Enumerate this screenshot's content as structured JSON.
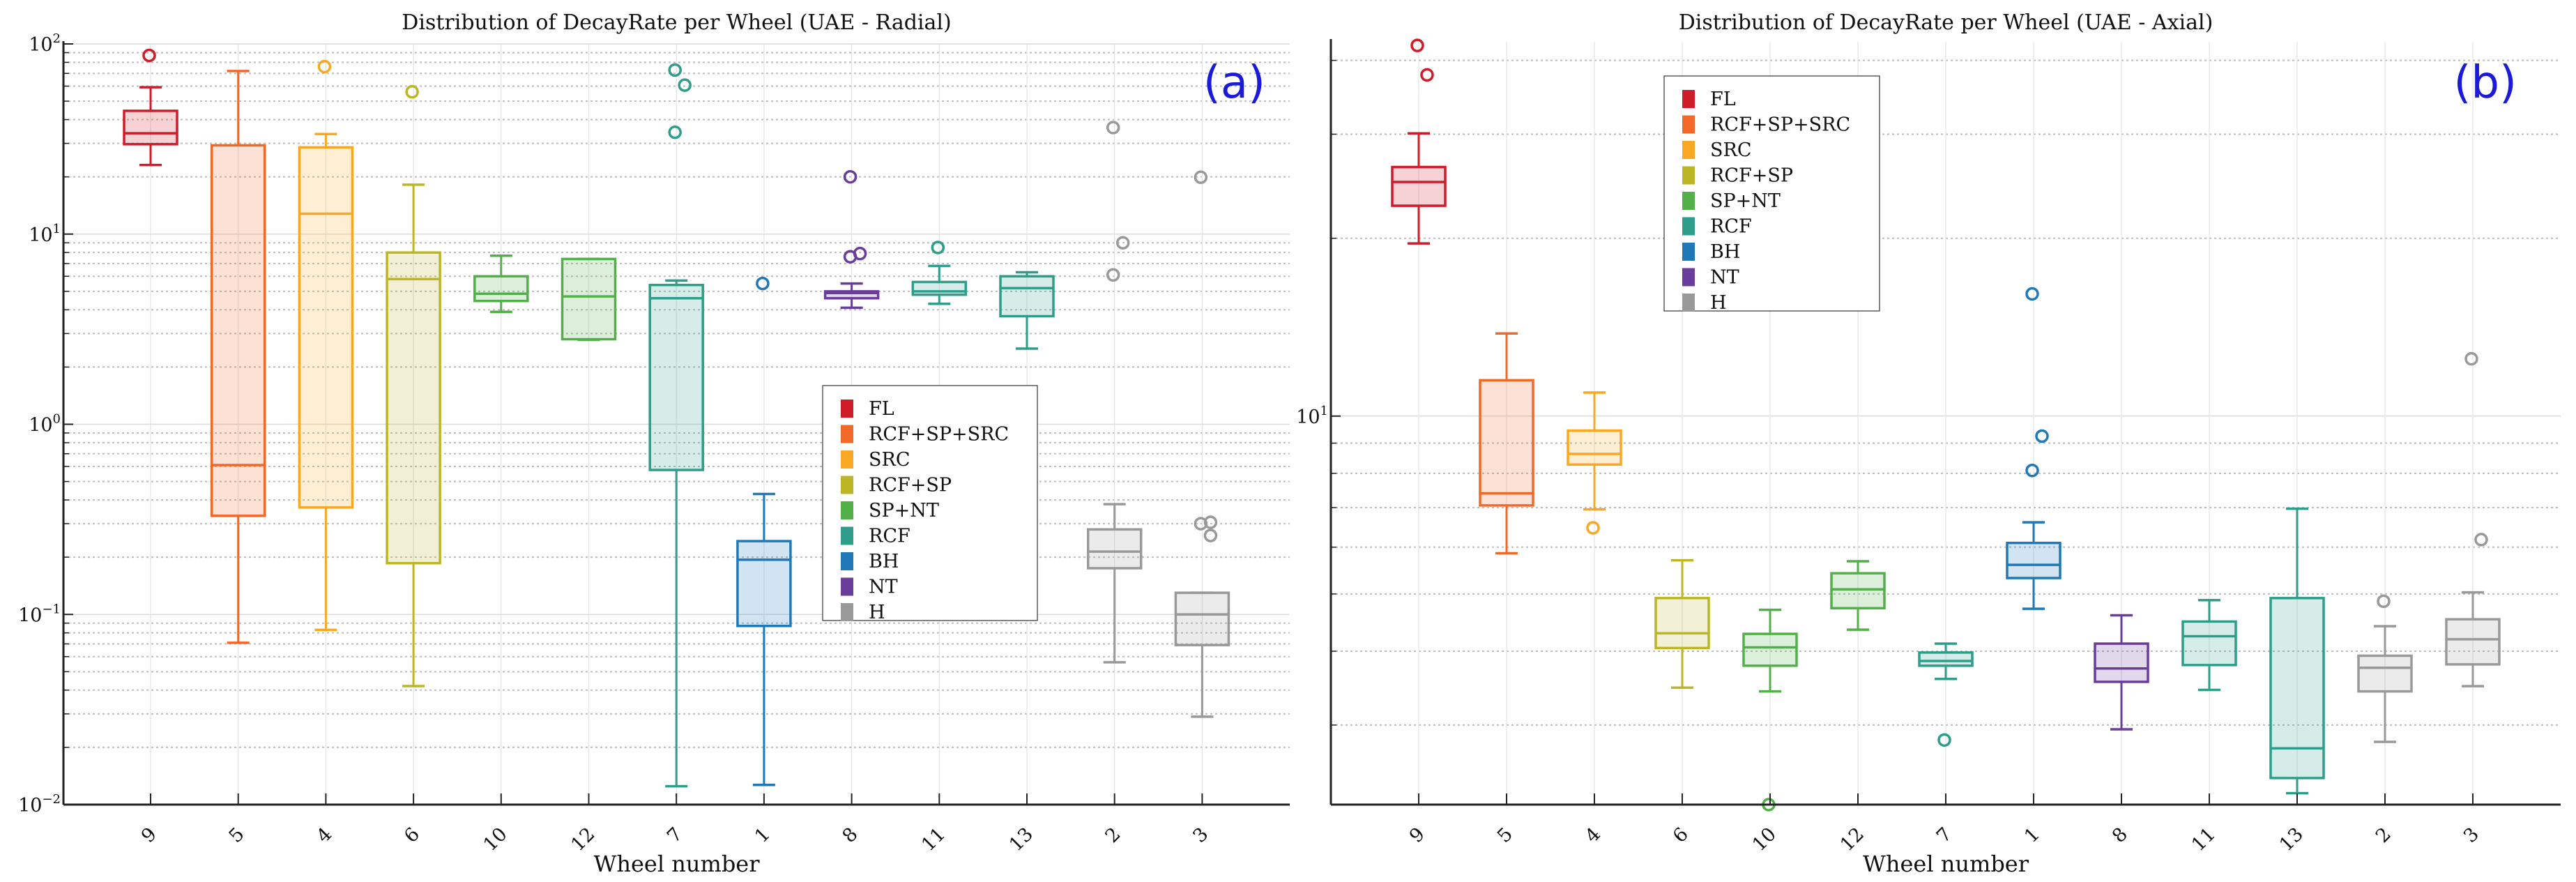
{
  "chart_data": [
    {
      "type": "box",
      "title": "Distribution of DecayRate per Wheel (UAE - Radial)",
      "panel_label": "(a)",
      "xlabel": "Wheel number",
      "ylabel": "",
      "yscale": "log",
      "ylim": [
        0.01,
        100
      ],
      "ytick_labels": [
        {
          "base": "10",
          "exp": "−2",
          "value": 0.01
        },
        {
          "base": "10",
          "exp": "−1",
          "value": 0.1
        },
        {
          "base": "10",
          "exp": "0",
          "value": 1
        },
        {
          "base": "10",
          "exp": "1",
          "value": 10
        },
        {
          "base": "10",
          "exp": "2",
          "value": 100
        }
      ],
      "grid": true,
      "legend_position": "center-right",
      "categories": [
        "9",
        "5",
        "4",
        "6",
        "10",
        "12",
        "7",
        "1",
        "8",
        "11",
        "13",
        "2",
        "3"
      ],
      "boxes": [
        {
          "wheel": "9",
          "group": "FL",
          "whislo": 23.1,
          "q1": 29.7,
          "med": 33.9,
          "q3": 44.5,
          "whishi": 59.2,
          "fliers": [
            87
          ]
        },
        {
          "wheel": "5",
          "group": "RCF+SP+SRC",
          "whislo": 0.071,
          "q1": 0.33,
          "med": 0.61,
          "q3": 29.3,
          "whishi": 72,
          "fliers": []
        },
        {
          "wheel": "4",
          "group": "SRC",
          "whislo": 0.083,
          "q1": 0.365,
          "med": 12.8,
          "q3": 28.6,
          "whishi": 33.6,
          "fliers": [
            76
          ]
        },
        {
          "wheel": "6",
          "group": "RCF+SP",
          "whislo": 0.042,
          "q1": 0.186,
          "med": 5.8,
          "q3": 8.0,
          "whishi": 18.2,
          "fliers": [
            56
          ]
        },
        {
          "wheel": "10",
          "group": "SP+NT",
          "whislo": 3.9,
          "q1": 4.45,
          "med": 4.86,
          "q3": 6.0,
          "whishi": 7.7,
          "fliers": []
        },
        {
          "wheel": "12",
          "group": "SP+NT",
          "whislo": 2.78,
          "q1": 2.8,
          "med": 4.7,
          "q3": 7.4,
          "whishi": 7.4,
          "fliers": []
        },
        {
          "wheel": "7",
          "group": "RCF",
          "whislo": 0.0125,
          "q1": 0.575,
          "med": 4.6,
          "q3": 5.4,
          "whishi": 5.7,
          "fliers": [
            72.9,
            60.7,
            34.3
          ]
        },
        {
          "wheel": "1",
          "group": "BH",
          "whislo": 0.0127,
          "q1": 0.087,
          "med": 0.194,
          "q3": 0.243,
          "whishi": 0.43,
          "fliers": [
            5.5
          ]
        },
        {
          "wheel": "8",
          "group": "NT",
          "whislo": 4.1,
          "q1": 4.6,
          "med": 4.9,
          "q3": 5.0,
          "whishi": 5.5,
          "fliers": [
            20.0,
            7.9,
            7.6
          ]
        },
        {
          "wheel": "11",
          "group": "RCF",
          "whislo": 4.3,
          "q1": 4.8,
          "med": 5.0,
          "q3": 5.6,
          "whishi": 6.8,
          "fliers": [
            8.5
          ]
        },
        {
          "wheel": "13",
          "group": "RCF",
          "whislo": 2.5,
          "q1": 3.7,
          "med": 5.2,
          "q3": 6.0,
          "whishi": 6.3,
          "fliers": []
        },
        {
          "wheel": "2",
          "group": "H",
          "whislo": 0.056,
          "q1": 0.175,
          "med": 0.214,
          "q3": 0.28,
          "whishi": 0.38,
          "fliers": [
            36.3,
            9.0,
            6.1
          ]
        },
        {
          "wheel": "3",
          "group": "H",
          "whislo": 0.029,
          "q1": 0.069,
          "med": 0.1,
          "q3": 0.13,
          "whishi": 0.13,
          "fliers": [
            19.9,
            0.305,
            0.3,
            0.26
          ]
        }
      ]
    },
    {
      "type": "box",
      "title": "Distribution of DecayRate per Wheel (UAE - Axial)",
      "panel_label": "(b)",
      "xlabel": "Wheel number",
      "ylabel": "",
      "yscale": "log",
      "ylim": [
        2.2,
        43
      ],
      "ytick_labels": [
        {
          "base": "10",
          "exp": "1",
          "value": 10
        }
      ],
      "grid": true,
      "legend_position": "top-center-left",
      "categories": [
        "9",
        "5",
        "4",
        "6",
        "10",
        "12",
        "7",
        "1",
        "8",
        "11",
        "13",
        "2",
        "3"
      ],
      "boxes": [
        {
          "wheel": "9",
          "group": "FL",
          "whislo": 19.6,
          "q1": 22.7,
          "med": 24.9,
          "q3": 26.4,
          "whishi": 30.1,
          "fliers": [
            42.4,
            37.8
          ]
        },
        {
          "wheel": "5",
          "group": "RCF+SP+SRC",
          "whislo": 5.86,
          "q1": 7.06,
          "med": 7.4,
          "q3": 11.5,
          "whishi": 13.8,
          "fliers": []
        },
        {
          "wheel": "4",
          "group": "SRC",
          "whislo": 6.95,
          "q1": 8.28,
          "med": 8.63,
          "q3": 9.45,
          "whishi": 10.96,
          "fliers": [
            6.47
          ]
        },
        {
          "wheel": "6",
          "group": "RCF+SP",
          "whislo": 3.47,
          "q1": 4.05,
          "med": 4.29,
          "q3": 4.92,
          "whishi": 5.7,
          "fliers": []
        },
        {
          "wheel": "10",
          "group": "SP+NT",
          "whislo": 3.42,
          "q1": 3.78,
          "med": 4.06,
          "q3": 4.28,
          "whishi": 4.7,
          "fliers": [
            2.2
          ]
        },
        {
          "wheel": "12",
          "group": "SP+NT",
          "whislo": 4.35,
          "q1": 4.73,
          "med": 5.09,
          "q3": 5.42,
          "whishi": 5.68,
          "fliers": []
        },
        {
          "wheel": "7",
          "group": "RCF",
          "whislo": 3.59,
          "q1": 3.78,
          "med": 3.85,
          "q3": 3.98,
          "whishi": 4.12,
          "fliers": [
            2.83
          ]
        },
        {
          "wheel": "1",
          "group": "BH",
          "whislo": 4.72,
          "q1": 5.32,
          "med": 5.6,
          "q3": 6.1,
          "whishi": 6.61,
          "fliers": [
            16.1,
            9.25,
            8.09
          ]
        },
        {
          "wheel": "8",
          "group": "NT",
          "whislo": 2.95,
          "q1": 3.55,
          "med": 3.74,
          "q3": 4.12,
          "whishi": 4.6,
          "fliers": []
        },
        {
          "wheel": "11",
          "group": "RCF",
          "whislo": 3.44,
          "q1": 3.79,
          "med": 4.24,
          "q3": 4.49,
          "whishi": 4.88,
          "fliers": []
        },
        {
          "wheel": "13",
          "group": "RCF",
          "whislo": 2.3,
          "q1": 2.44,
          "med": 2.74,
          "q3": 4.92,
          "whishi": 6.97,
          "fliers": []
        },
        {
          "wheel": "2",
          "group": "H",
          "whislo": 2.81,
          "q1": 3.42,
          "med": 3.75,
          "q3": 3.93,
          "whishi": 4.41,
          "fliers": [
            4.86
          ]
        },
        {
          "wheel": "3",
          "group": "H",
          "whislo": 3.49,
          "q1": 3.8,
          "med": 4.19,
          "q3": 4.53,
          "whishi": 5.03,
          "fliers": [
            12.5,
            6.18
          ]
        }
      ]
    }
  ],
  "legend": [
    {
      "label": "FL",
      "color": "#d01c29"
    },
    {
      "label": "RCF+SP+SRC",
      "color": "#f26829"
    },
    {
      "label": "SRC",
      "color": "#faa823"
    },
    {
      "label": "RCF+SP",
      "color": "#bcb626"
    },
    {
      "label": "SP+NT",
      "color": "#52b048"
    },
    {
      "label": "RCF",
      "color": "#2e9e8a"
    },
    {
      "label": "BH",
      "color": "#1f78b8"
    },
    {
      "label": "NT",
      "color": "#6a3d9a"
    },
    {
      "label": "H",
      "color": "#999999"
    }
  ]
}
